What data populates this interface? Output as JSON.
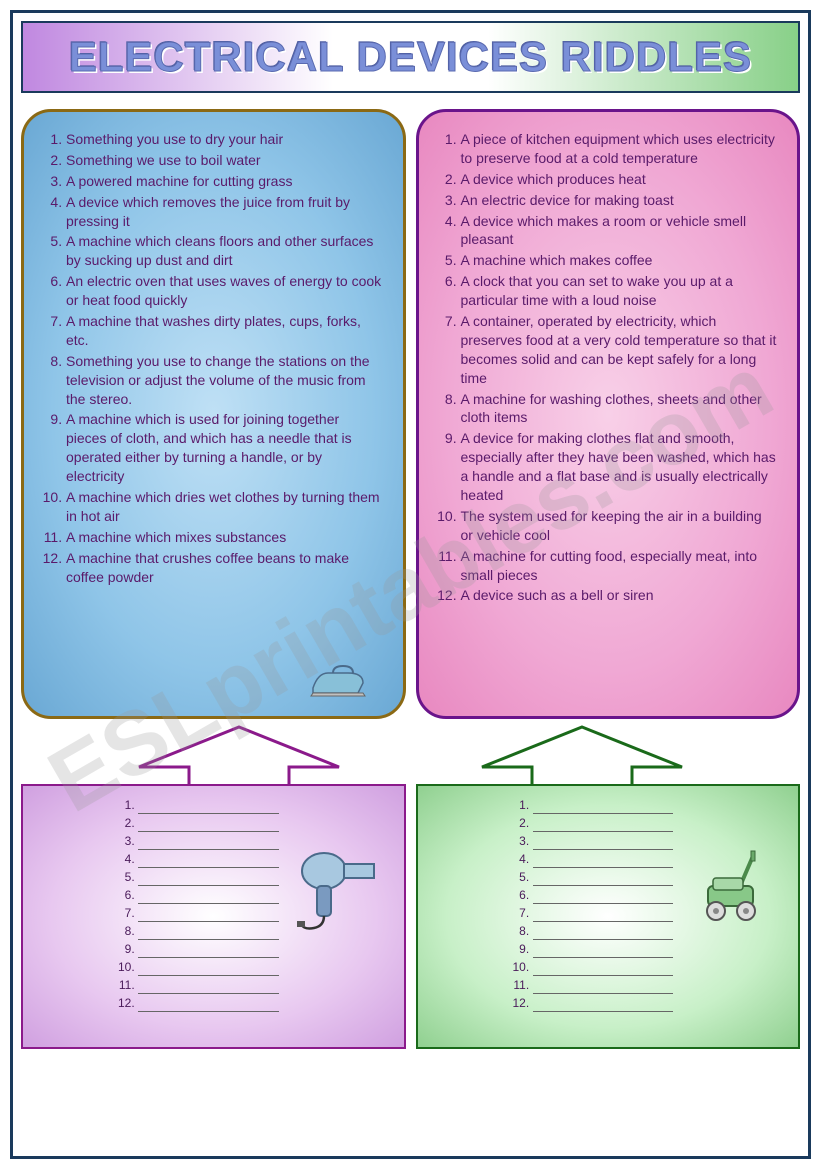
{
  "title": "ELECTRICAL DEVICES RIDDLES",
  "watermark": "ESLprintables.com",
  "colors": {
    "border": "#1a3a5c",
    "title_fill": "#7a8fd8",
    "riddle_text": "#5a1a6a",
    "left_card_border": "#8b6914",
    "right_card_border": "#6a148b",
    "left_answer_border": "#8b1a8b",
    "right_answer_border": "#1a6a1a",
    "arrow_left": "#8b1a8b",
    "arrow_right": "#1a6a1a"
  },
  "left_riddles": [
    "Something you use to dry your hair",
    "Something we use to boil water",
    "A powered machine for cutting grass",
    "A device which removes the juice from fruit by pressing it",
    "A machine which cleans floors and other surfaces by sucking up dust and dirt",
    "An electric oven that uses waves of energy to cook or heat food quickly",
    "A machine that washes dirty plates, cups, forks, etc.",
    "Something you use to change the stations on the television or adjust the volume of the music from the stereo.",
    "A machine which is used for joining together pieces of cloth, and which has a needle that is operated either by turning a handle, or by electricity",
    "A machine which dries wet clothes by turning them in hot air",
    "A machine which mixes substances",
    "A machine that crushes coffee beans to make coffee powder"
  ],
  "right_riddles": [
    "A piece of kitchen equipment which uses electricity to preserve food at a cold temperature",
    "A device which produces heat",
    "An electric device for making toast",
    "A device which makes a room or vehicle smell pleasant",
    "A machine which makes coffee",
    "A clock that you can set to wake you up at a particular time with a loud noise",
    "A container, operated by electricity, which preserves food at a very cold temperature so that it becomes solid and can be kept safely for a long time",
    "A machine for washing clothes, sheets and other cloth items",
    "A device for making clothes flat and smooth, especially after they have been washed, which has a handle and a flat base and is usually electrically heated",
    "The system used for keeping the air in a building or vehicle cool",
    "A machine for cutting food, especially meat, into small pieces",
    "A device such as a bell or siren"
  ],
  "answer_count": 12,
  "icons": {
    "iron": "iron-icon",
    "hairdryer": "hairdryer-icon",
    "mower": "lawnmower-icon"
  }
}
